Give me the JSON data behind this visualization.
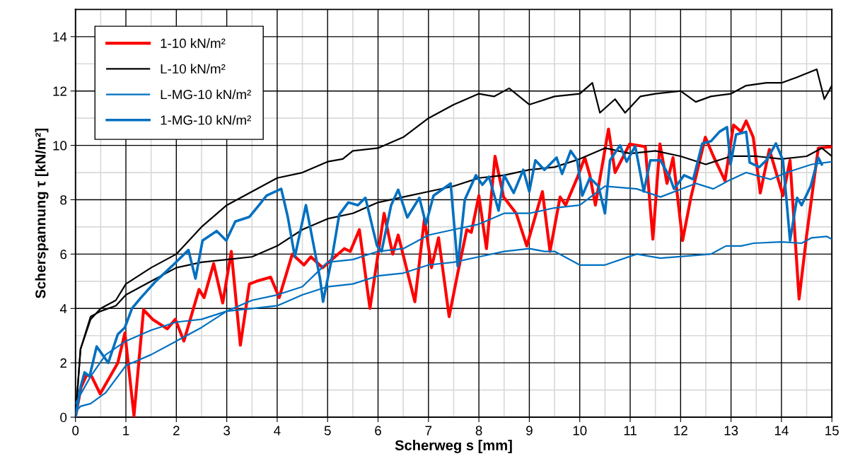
{
  "chart_data": {
    "type": "line",
    "xlabel": "Scherweg s [mm]",
    "ylabel": "Scherspannung τ [kN/m²]",
    "xlim": [
      0,
      15
    ],
    "xticks": [
      0,
      1,
      2,
      3,
      4,
      5,
      6,
      7,
      8,
      9,
      10,
      11,
      12,
      13,
      14,
      15
    ],
    "ylim": [
      0,
      15
    ],
    "yticks": [
      0,
      2,
      4,
      6,
      8,
      10,
      12,
      14
    ],
    "grid": true,
    "legend": "top left",
    "marker": "none",
    "line_style": "solid",
    "series": [
      {
        "name": "1-10 kN/m²",
        "color": "#ff0000",
        "x": [
          0,
          0.11,
          0.22,
          0.32,
          0.49,
          0.84,
          0.98,
          1.16,
          1.35,
          1.53,
          1.82,
          1.98,
          2.15,
          2.45,
          2.55,
          2.74,
          2.92,
          3.09,
          3.27,
          3.45,
          3.59,
          3.87,
          4.04,
          4.3,
          4.53,
          4.67,
          4.9,
          5.33,
          5.45,
          5.63,
          5.84,
          6.12,
          6.29,
          6.4,
          6.73,
          6.92,
          7.06,
          7.2,
          7.41,
          7.58,
          7.76,
          7.85,
          8.0,
          8.15,
          8.32,
          8.49,
          8.74,
          8.95,
          9.26,
          9.41,
          9.61,
          9.72,
          9.96,
          10.1,
          10.2,
          10.31,
          10.57,
          10.7,
          10.99,
          11.3,
          11.45,
          11.59,
          11.73,
          11.85,
          12.04,
          12.2,
          12.49,
          12.65,
          12.88,
          13.05,
          13.2,
          13.3,
          13.44,
          13.58,
          13.76,
          14.03,
          14.17,
          14.35,
          14.5,
          14.73,
          15
        ],
        "values": [
          0,
          1.1,
          1.55,
          1.5,
          0.86,
          2.0,
          3.1,
          0.05,
          3.95,
          3.6,
          3.25,
          3.6,
          2.8,
          4.7,
          4.4,
          5.65,
          4.2,
          6.1,
          2.65,
          4.9,
          5.0,
          5.15,
          4.4,
          6.0,
          5.6,
          5.9,
          5.5,
          6.2,
          6.1,
          6.9,
          4.0,
          7.5,
          6.0,
          6.7,
          4.25,
          7.3,
          5.5,
          6.6,
          3.7,
          5.3,
          6.9,
          6.8,
          8.15,
          6.2,
          9.6,
          8.1,
          7.5,
          6.3,
          8.3,
          6.1,
          8.1,
          7.8,
          8.85,
          9.55,
          8.9,
          7.8,
          10.6,
          9.0,
          10.05,
          9.95,
          6.55,
          10.05,
          8.6,
          9.55,
          6.5,
          8.05,
          10.3,
          9.6,
          8.7,
          10.75,
          10.5,
          10.9,
          10.3,
          8.25,
          9.85,
          8.15,
          9.45,
          4.35,
          6.7,
          9.9,
          9.95
        ]
      },
      {
        "name": "L-10 kN/m²",
        "color": "#000000",
        "x": [
          0,
          0.1,
          0.3,
          0.5,
          0.8,
          1,
          1.5,
          2,
          2.5,
          3,
          3.5,
          4,
          4.5,
          5,
          5.3,
          5.5,
          6,
          6.5,
          7,
          7.5,
          8,
          8.3,
          8.6,
          9,
          9.5,
          10,
          10.25,
          10.4,
          10.7,
          10.9,
          11.2,
          11.5,
          12,
          12.3,
          12.6,
          13,
          13.3,
          13.7,
          14,
          14.3,
          14.7,
          14.85,
          15
        ],
        "values": [
          0,
          2.5,
          3.6,
          4.0,
          4.3,
          4.9,
          5.5,
          6.0,
          7.0,
          7.8,
          8.3,
          8.8,
          9.0,
          9.4,
          9.5,
          9.8,
          9.9,
          10.3,
          11.0,
          11.5,
          11.9,
          11.8,
          12.1,
          11.5,
          11.8,
          11.9,
          12.3,
          11.2,
          11.7,
          11.2,
          11.8,
          11.9,
          12.0,
          11.6,
          11.8,
          11.9,
          12.2,
          12.3,
          12.3,
          12.5,
          12.8,
          11.7,
          12.2
        ]
      },
      {
        "color": "#000000",
        "x": [
          0,
          0.1,
          0.3,
          0.5,
          0.8,
          1,
          1.5,
          2,
          2.5,
          3,
          3.5,
          4,
          4.5,
          5,
          5.5,
          6,
          6.5,
          7,
          7.5,
          8,
          8.5,
          9,
          9.5,
          10,
          10.5,
          11,
          11.5,
          12,
          12.5,
          13,
          13.5,
          14,
          14.5,
          14.8,
          15
        ],
        "values": [
          0,
          2.5,
          3.7,
          3.9,
          4.1,
          4.5,
          5.0,
          5.5,
          5.7,
          5.8,
          5.9,
          6.3,
          6.9,
          7.3,
          7.5,
          7.9,
          8.1,
          8.3,
          8.5,
          8.8,
          8.9,
          9.1,
          9.2,
          9.5,
          9.9,
          9.7,
          9.8,
          9.6,
          9.3,
          9.6,
          9.6,
          9.5,
          9.6,
          9.9,
          9.6
        ]
      },
      {
        "name": "L-MG-10 kN/m²",
        "color": "#0070c0",
        "x": [
          0,
          0.3,
          0.6,
          1,
          1.5,
          2,
          2.5,
          3,
          3.5,
          4,
          4.5,
          5,
          5.5,
          6,
          6.5,
          7,
          7.5,
          8,
          8.5,
          9,
          9.5,
          10,
          10.5,
          11.13,
          11.6,
          12.3,
          12.65,
          12.95,
          13.3,
          13.78,
          14.1,
          14.6,
          15
        ],
        "values": [
          0.5,
          1.5,
          2.3,
          2.8,
          3.2,
          3.5,
          3.6,
          3.9,
          4.3,
          4.5,
          4.8,
          5.7,
          5.8,
          6.1,
          6.2,
          6.7,
          6.9,
          7.1,
          7.5,
          7.5,
          7.7,
          7.8,
          8.5,
          8.4,
          8.1,
          8.6,
          8.4,
          8.7,
          9.0,
          8.75,
          9.0,
          9.3,
          9.4
        ]
      },
      {
        "color": "#0070c0",
        "x": [
          0,
          0.1,
          0.3,
          0.6,
          1,
          1.5,
          2,
          2.5,
          3,
          3.5,
          4,
          4.5,
          5,
          5.5,
          6,
          6.5,
          7,
          7.5,
          8,
          8.5,
          9,
          9.3,
          9.5,
          10,
          10.5,
          11.13,
          11.6,
          12.6,
          12.9,
          13.2,
          13.45,
          14.0,
          14.4,
          14.6,
          14.9,
          15
        ],
        "values": [
          0.2,
          0.4,
          0.5,
          0.9,
          1.9,
          2.3,
          2.8,
          3.3,
          3.9,
          4.0,
          4.1,
          4.5,
          4.8,
          4.9,
          5.2,
          5.3,
          5.6,
          5.7,
          5.9,
          6.1,
          6.2,
          6.1,
          6.1,
          5.6,
          5.6,
          6.0,
          5.85,
          6.0,
          6.3,
          6.3,
          6.4,
          6.45,
          6.4,
          6.6,
          6.65,
          6.55
        ]
      },
      {
        "name": "1-MG-10 kN/m²",
        "color": "#0070c0",
        "x": [
          0,
          0.1,
          0.18,
          0.28,
          0.42,
          0.65,
          0.84,
          0.98,
          1.12,
          1.3,
          1.59,
          1.91,
          2.24,
          2.38,
          2.52,
          2.8,
          2.99,
          3.17,
          3.45,
          3.64,
          3.79,
          4.08,
          4.21,
          4.35,
          4.57,
          4.85,
          4.91,
          5.09,
          5.23,
          5.41,
          5.6,
          5.75,
          5.98,
          6.07,
          6.26,
          6.4,
          6.58,
          6.82,
          6.95,
          7.1,
          7.44,
          7.58,
          7.72,
          7.94,
          8.07,
          8.2,
          8.39,
          8.5,
          8.69,
          8.88,
          9.0,
          9.12,
          9.3,
          9.54,
          9.65,
          9.82,
          9.95,
          10.05,
          10.2,
          10.37,
          10.5,
          10.6,
          10.8,
          10.93,
          11.1,
          11.27,
          11.4,
          11.6,
          11.78,
          11.87,
          12.07,
          12.25,
          12.43,
          12.6,
          12.77,
          12.92,
          12.99,
          13.1,
          13.3,
          13.37,
          13.56,
          13.7,
          13.89,
          14.03,
          14.17,
          14.31,
          14.4,
          14.58,
          14.73,
          14.8
        ],
        "values": [
          0,
          1.1,
          1.65,
          1.5,
          2.6,
          2.0,
          3.05,
          3.3,
          4.0,
          4.4,
          5.0,
          5.55,
          6.15,
          5.1,
          6.5,
          6.85,
          6.5,
          7.2,
          7.37,
          7.8,
          8.15,
          8.4,
          7.37,
          5.9,
          7.8,
          5.1,
          4.25,
          5.9,
          7.45,
          7.9,
          7.8,
          8.07,
          6.3,
          6.1,
          7.8,
          8.37,
          7.35,
          8.07,
          7.1,
          8.15,
          8.6,
          5.55,
          8.0,
          8.9,
          8.55,
          8.85,
          7.6,
          8.9,
          8.25,
          9.1,
          8.3,
          9.45,
          9.1,
          9.55,
          8.95,
          9.8,
          9.45,
          8.15,
          8.8,
          8.5,
          7.5,
          9.45,
          10.0,
          9.4,
          9.97,
          8.3,
          9.45,
          9.45,
          8.85,
          8.4,
          8.9,
          8.75,
          10.07,
          10.15,
          10.5,
          10.67,
          9.3,
          10.4,
          10.5,
          9.37,
          9.2,
          9.45,
          10.07,
          9.45,
          6.5,
          8.07,
          7.8,
          8.5,
          9.55,
          9.3
        ]
      }
    ]
  }
}
